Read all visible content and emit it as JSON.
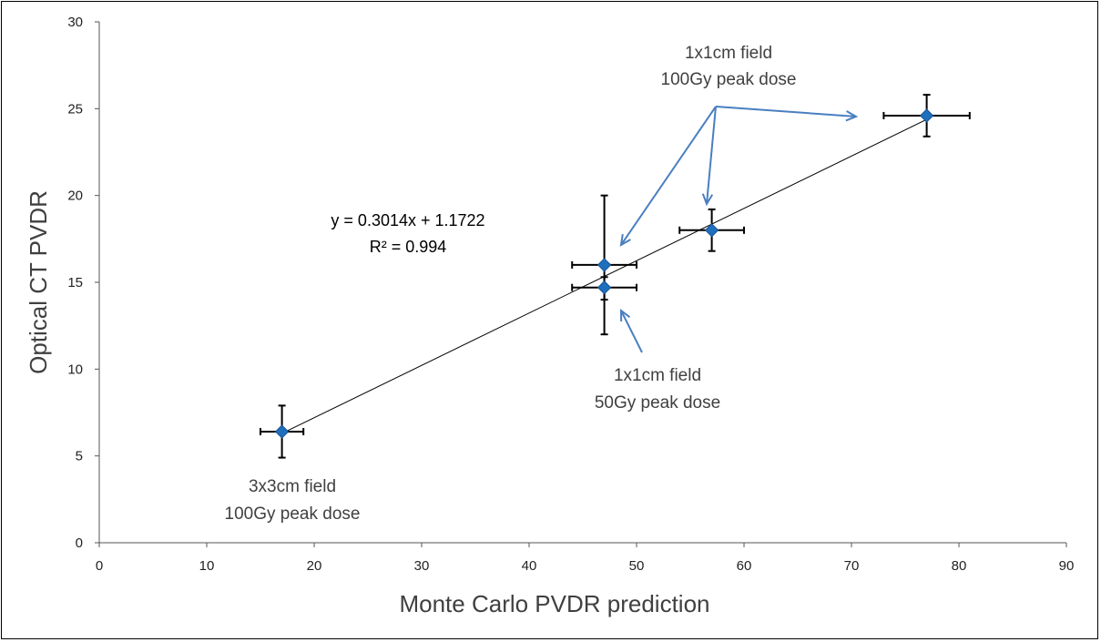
{
  "chart_data": {
    "type": "scatter",
    "xlabel": "Monte Carlo PVDR prediction",
    "ylabel": "Optical CT PVDR",
    "xlim": [
      0,
      90
    ],
    "ylim": [
      0,
      30
    ],
    "x_ticks": [
      "0",
      "10",
      "20",
      "30",
      "40",
      "50",
      "60",
      "70",
      "80",
      "90"
    ],
    "y_ticks": [
      "0",
      "5",
      "10",
      "15",
      "20",
      "25",
      "30"
    ],
    "grid": false,
    "marker_color": "#1f6fbf",
    "arrow_color": "#4a7fc0",
    "points": [
      {
        "x": 17,
        "y": 6.4,
        "x_err": 2.0,
        "y_err_low": 1.5,
        "y_err_high": 1.5
      },
      {
        "x": 47,
        "y": 16.0,
        "x_err": 3.0,
        "y_err_low": 2.0,
        "y_err_high": 4.0
      },
      {
        "x": 47,
        "y": 14.7,
        "x_err": 3.0,
        "y_err_low": 2.7,
        "y_err_high": 0.6
      },
      {
        "x": 57,
        "y": 18.0,
        "x_err": 3.0,
        "y_err_low": 1.2,
        "y_err_high": 1.2
      },
      {
        "x": 77,
        "y": 24.6,
        "x_err": 4.0,
        "y_err_low": 1.2,
        "y_err_high": 1.2
      }
    ],
    "trendline": {
      "slope": 0.3014,
      "intercept": 1.1722,
      "x_range": [
        17,
        77
      ],
      "equation": "y = 0.3014x + 1.1722",
      "r_squared": "R² = 0.994"
    },
    "annotations": [
      {
        "line1": "1x1cm field",
        "line2": "100Gy peak dose"
      },
      {
        "line1": "1x1cm field",
        "line2": "50Gy peak dose"
      },
      {
        "line1": "3x3cm field",
        "line2": "100Gy peak dose"
      }
    ]
  }
}
